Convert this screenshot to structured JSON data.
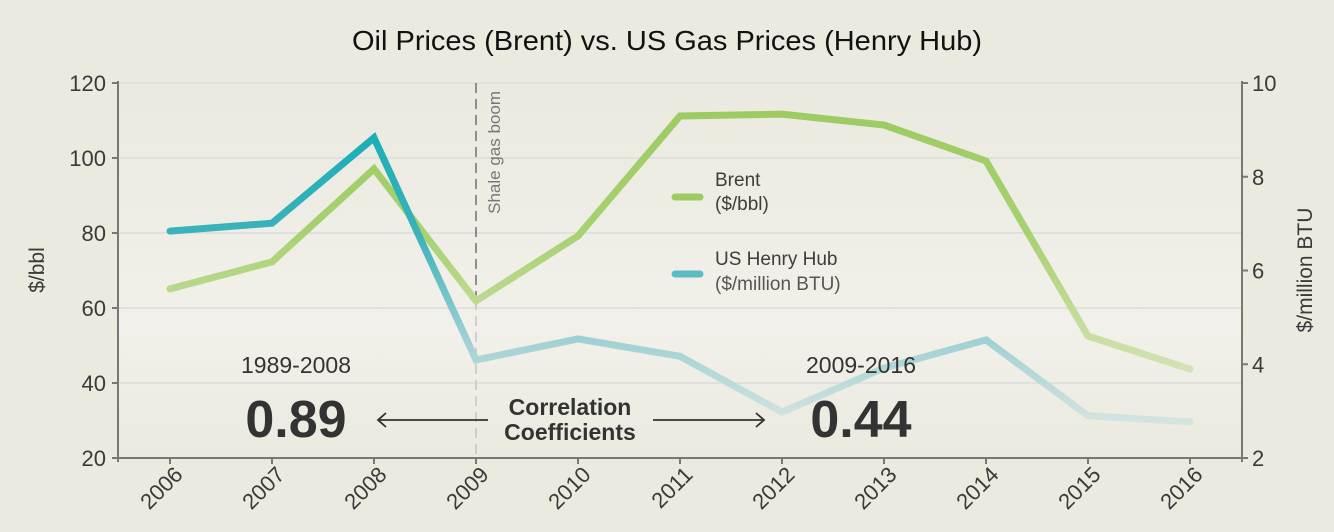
{
  "chart_data": {
    "type": "line",
    "title": "Oil Prices (Brent) vs. US Gas Prices (Henry Hub)",
    "x": [
      "2006",
      "2007",
      "2008",
      "2009",
      "2010",
      "2011",
      "2012",
      "2013",
      "2014",
      "2015",
      "2016"
    ],
    "xlabel": "",
    "ylabel": "$/bbl",
    "ylabel_right": "$/million  BTU",
    "ylim": [
      20,
      120
    ],
    "ylim_right": [
      2,
      10
    ],
    "yticks": [
      20,
      40,
      60,
      80,
      100,
      120
    ],
    "yticks_right": [
      2,
      4,
      6,
      8,
      10
    ],
    "grid": true,
    "series": [
      {
        "name": "Brent",
        "unit": "($/bbl)",
        "axis": "left",
        "color": "#9dcb62",
        "values": [
          65.1,
          72.3,
          97.1,
          61.9,
          79.2,
          111.2,
          111.7,
          108.8,
          99.2,
          52.5,
          43.7
        ]
      },
      {
        "name": "US Henry Hub",
        "unit": "($/million BTU)",
        "axis": "right",
        "color": "#19aeb7",
        "values": [
          6.84,
          7.01,
          8.83,
          4.09,
          4.54,
          4.17,
          2.98,
          3.92,
          4.52,
          2.9,
          2.77
        ]
      }
    ],
    "legend": {
      "placement": "center"
    },
    "annotations": {
      "event": {
        "label": "Shale gas boom",
        "x": "2009"
      },
      "correlation_label": [
        "Correlation",
        "Coefficients"
      ],
      "periods": [
        {
          "period": "1989-2008",
          "value": "0.89"
        },
        {
          "period": "2009-2016",
          "value": "0.44"
        }
      ]
    }
  }
}
